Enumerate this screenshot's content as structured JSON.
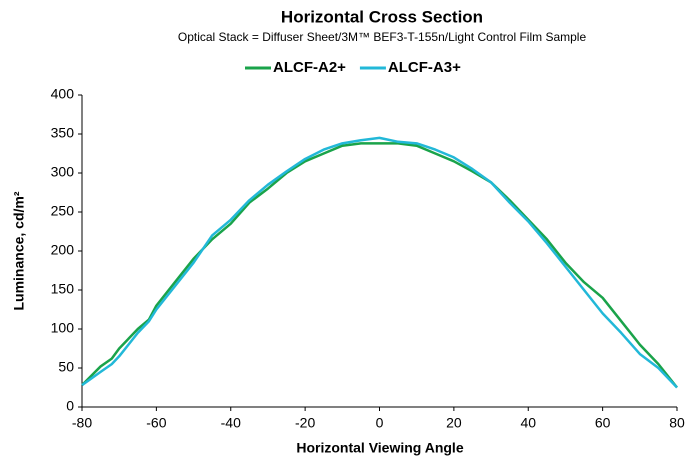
{
  "chart_data": {
    "type": "line",
    "title": "Horizontal Cross Section",
    "subtitle": "Optical Stack = Diffuser Sheet/3M™ BEF3-T-155n/Light Control Film Sample",
    "xlabel": "Horizontal Viewing Angle",
    "ylabel": "Luminance, cd/m²",
    "x": [
      -80,
      -75,
      -72,
      -70,
      -65,
      -62,
      -60,
      -55,
      -50,
      -45,
      -40,
      -35,
      -30,
      -25,
      -20,
      -15,
      -10,
      -5,
      0,
      5,
      10,
      15,
      20,
      25,
      30,
      35,
      40,
      45,
      50,
      55,
      60,
      65,
      70,
      75,
      80
    ],
    "series": [
      {
        "name": "ALCF-A2+",
        "color": "#1aa34a",
        "values": [
          28,
          52,
          62,
          75,
          100,
          112,
          130,
          160,
          190,
          215,
          235,
          262,
          280,
          300,
          315,
          325,
          335,
          338,
          338,
          338,
          335,
          325,
          315,
          302,
          288,
          265,
          240,
          215,
          185,
          160,
          140,
          110,
          80,
          55,
          25
        ]
      },
      {
        "name": "ALCF-A3+",
        "color": "#22b8d8",
        "values": [
          28,
          45,
          55,
          65,
          95,
          110,
          125,
          155,
          185,
          220,
          240,
          265,
          285,
          302,
          318,
          330,
          338,
          342,
          345,
          340,
          338,
          330,
          320,
          305,
          288,
          262,
          238,
          210,
          180,
          150,
          120,
          95,
          68,
          50,
          25
        ]
      }
    ],
    "xlim": [
      -80,
      80
    ],
    "xticks": [
      -80,
      -60,
      -40,
      -20,
      0,
      20,
      40,
      60,
      80
    ],
    "ylim": [
      0,
      400
    ],
    "yticks": [
      0,
      50,
      100,
      150,
      200,
      250,
      300,
      350,
      400
    ],
    "legend": "top"
  }
}
